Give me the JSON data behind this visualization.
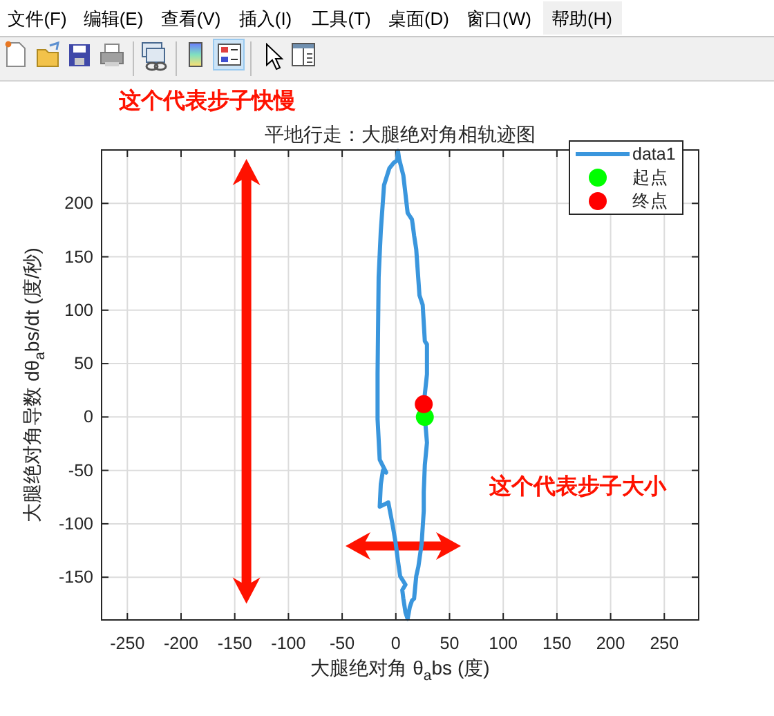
{
  "chart_data": {
    "type": "line",
    "title": "平地行走：大腿绝对角相轨迹图",
    "xlabel": "大腿绝对角 θ$_{a}$bs (度)",
    "ylabel": "大腿绝对角导数 dθ$_{a}$bs/dt (度/秒)",
    "xlim": [
      -274,
      282
    ],
    "xticks": [
      -250,
      -200,
      -150,
      -100,
      -50,
      0,
      50,
      100,
      150,
      200,
      250
    ],
    "ylim": [
      -190,
      250
    ],
    "yticks": [
      -150,
      -100,
      -50,
      0,
      50,
      100,
      150,
      200
    ],
    "grid": true,
    "legend": "top right",
    "series": [
      {
        "name": "data1",
        "color": "#3a96dd",
        "x": [
          27,
          29,
          27,
          26,
          26,
          24,
          21,
          19,
          17,
          15,
          13,
          11,
          9,
          7,
          6,
          9,
          4,
          2,
          0,
          -3,
          -7,
          -15,
          -14,
          -12,
          -9,
          -15,
          -17,
          -17,
          -16,
          -14,
          -11,
          -6,
          -2,
          1,
          2,
          3,
          7,
          11,
          15,
          16,
          17,
          19,
          22,
          25,
          27,
          29,
          29,
          26
        ],
        "values": [
          0,
          -24,
          -45,
          -70,
          -88,
          -119,
          -140,
          -149,
          -170,
          -172,
          -178,
          -189,
          -183,
          -170,
          -162,
          -157,
          -149,
          -135,
          -119,
          -101,
          -80,
          -84,
          -63,
          -50,
          -52,
          -40,
          -2,
          41,
          131,
          174,
          217,
          233,
          238,
          240,
          249,
          242,
          226,
          191,
          185,
          178,
          170,
          157,
          114,
          105,
          71,
          68,
          40,
          12
        ]
      },
      {
        "name": "起点",
        "type": "scatter",
        "marker": "circle",
        "color": "#00ff00",
        "x": [
          27
        ],
        "values": [
          0
        ]
      },
      {
        "name": "终点",
        "type": "scatter",
        "marker": "circle",
        "color": "#ff0000",
        "x": [
          26
        ],
        "values": [
          12
        ]
      }
    ],
    "annotations": [
      "文件(F)",
      "编辑(E)",
      "查看(V)",
      "插入(I)",
      "工具(T)",
      "桌面(D)",
      "窗口(W)",
      "帮助(H)",
      "这个代表步子快慢",
      "这个代表步子大小"
    ]
  }
}
